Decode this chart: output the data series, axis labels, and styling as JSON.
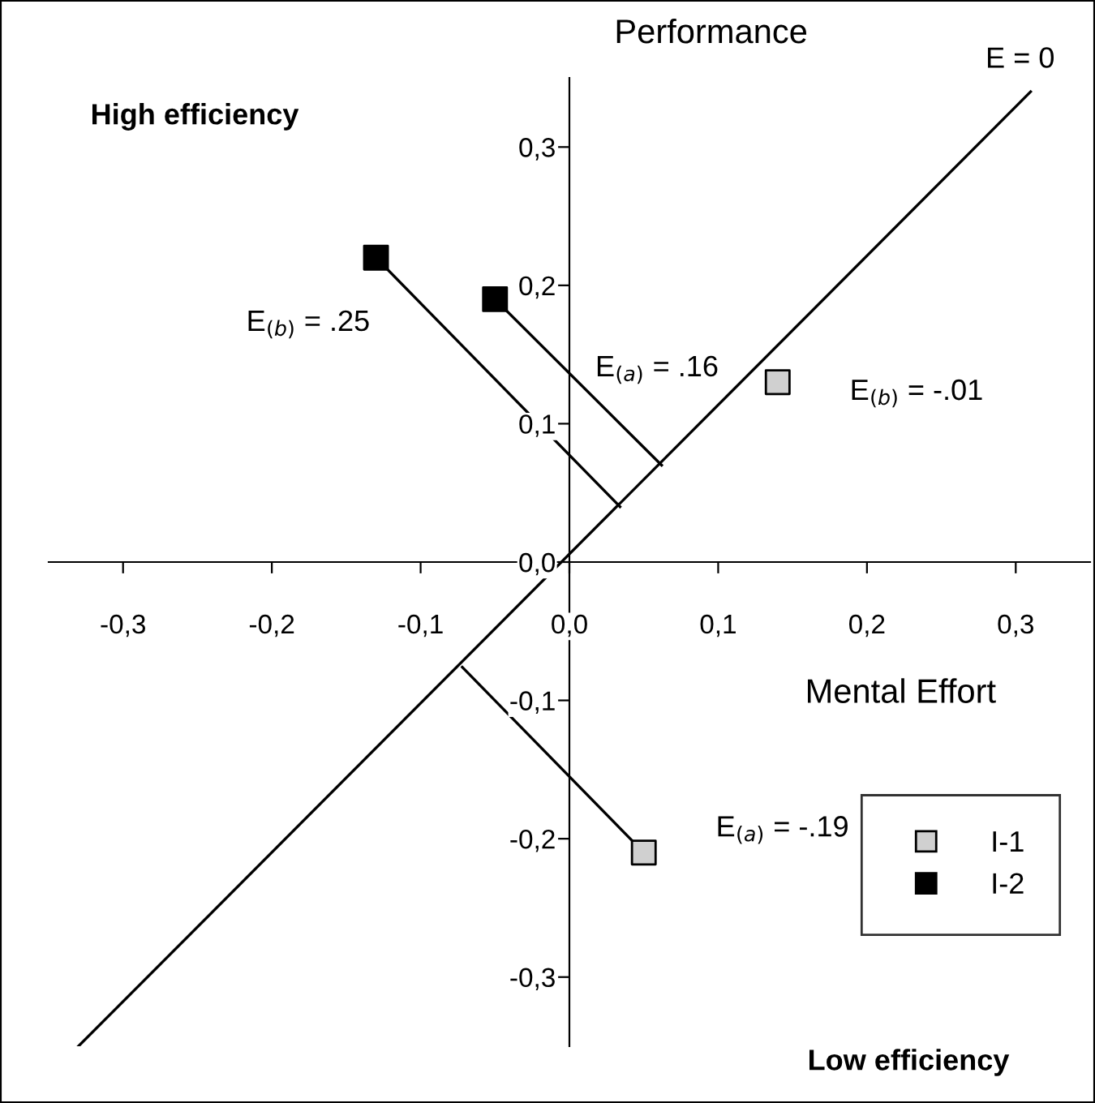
{
  "chart_data": {
    "type": "scatter",
    "xlabel": "Mental Effort",
    "ylabel": "Performance",
    "xlim": [
      -0.35,
      0.35
    ],
    "ylim": [
      -0.35,
      0.35
    ],
    "xticks": [
      {
        "value": -0.3,
        "label": "-0,3"
      },
      {
        "value": -0.2,
        "label": "-0,2"
      },
      {
        "value": -0.1,
        "label": "-0,1"
      },
      {
        "value": 0,
        "label": "0,0"
      },
      {
        "value": 0.1,
        "label": "0,1"
      },
      {
        "value": 0.2,
        "label": "0,2"
      },
      {
        "value": 0.3,
        "label": "0,3"
      }
    ],
    "yticks": [
      {
        "value": -0.3,
        "label": "-0,3"
      },
      {
        "value": -0.2,
        "label": "-0,2"
      },
      {
        "value": -0.1,
        "label": "-0,1"
      },
      {
        "value": 0,
        "label": "0,0"
      },
      {
        "value": 0.1,
        "label": "0,1"
      },
      {
        "value": 0.2,
        "label": "0,2"
      },
      {
        "value": 0.3,
        "label": "0,3"
      }
    ],
    "series": [
      {
        "name": "I-1",
        "color": "#d0d0d0",
        "x": [
          0.14,
          0.05
        ],
        "values": [
          0.13,
          -0.21
        ]
      },
      {
        "name": "I-2",
        "color": "#000000",
        "x": [
          -0.13,
          -0.05
        ],
        "values": [
          0.22,
          0.19
        ]
      },
      {
        "type": "line",
        "marker": "none",
        "color": "#000000",
        "x": [
          -0.33,
          0.31
        ],
        "values": [
          -0.35,
          0.34
        ]
      },
      {
        "type": "line",
        "marker": "none",
        "color": "#000000",
        "x": [
          -0.13,
          0.034
        ],
        "values": [
          0.22,
          0.04
        ]
      },
      {
        "type": "line",
        "marker": "none",
        "color": "#000000",
        "x": [
          -0.05,
          0.062
        ],
        "values": [
          0.19,
          0.07
        ]
      },
      {
        "type": "line",
        "marker": "none",
        "color": "#000000",
        "x": [
          0.05,
          -0.072
        ],
        "values": [
          -0.21,
          -0.076
        ]
      }
    ],
    "marker": "square",
    "legend": "bottom right",
    "grid": false,
    "annotations": [
      {
        "text": "E = 0",
        "x": 0.31,
        "y": 0.34
      },
      "High efficiency",
      "E$_{(b)}$ = .25",
      "E$_{(a)}$ = .16",
      {
        "text": "E$_{(b)}$ = -.01",
        "x": 0.14,
        "y": 0.13
      },
      {
        "text": "E$_{(a)}$ = -.19",
        "x": 0.05,
        "y": -0.21
      },
      "Low efficiency"
    ]
  }
}
